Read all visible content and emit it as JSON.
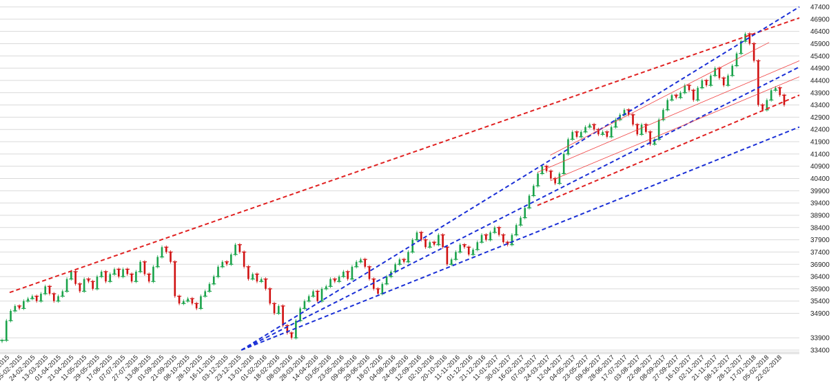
{
  "chart_data": {
    "type": "candlestick",
    "title": "",
    "xlabel": "",
    "ylabel": "",
    "ylim": [
      33400,
      47400
    ],
    "grid": true,
    "y_ticks": [
      33400,
      33900,
      34900,
      35400,
      35900,
      36400,
      36900,
      37400,
      37900,
      38400,
      38900,
      39400,
      39900,
      40400,
      40900,
      41400,
      41900,
      42400,
      42900,
      43400,
      43900,
      44400,
      44900,
      45400,
      45900,
      46400,
      46900,
      47400
    ],
    "x_ticks": [
      "2015",
      "05-02-2015",
      "24-02-2015",
      "13-03-2015",
      "01-04-2015",
      "21-04-2015",
      "11-05-2015",
      "29-05-2015",
      "17-06-2015",
      "07-07-2015",
      "27-07-2015",
      "13-08-2015",
      "01-09-2015",
      "21-09-2015",
      "08-10-2015",
      "28-10-2015",
      "16-11-2015",
      "03-12-2015",
      "23-12-2015",
      "13-01-2016",
      "01-02-2016",
      "18-02-2016",
      "08-03-2016",
      "28-03-2016",
      "14-04-2016",
      "03-05-2016",
      "23-05-2016",
      "09-06-2016",
      "29-06-2016",
      "18-07-2016",
      "04-08-2016",
      "24-08-2016",
      "12-09-2016",
      "02-10-2016",
      "20-10-2016",
      "11-11-2016",
      "01-12-2016",
      "21-12-2016",
      "11-01-2017",
      "30-01-2017",
      "16-02-2017",
      "07-03-2017",
      "24-03-2017",
      "12-04-2017",
      "04-05-2017",
      "23-05-2017",
      "09-06-2017",
      "28-06-2017",
      "17-07-2017",
      "03-08-2017",
      "22-08-2017",
      "08-09-2017",
      "27-09-2017",
      "16-10-2017",
      "02-11-2017",
      "21-11-2017",
      "08-12-2017",
      "28-12-2017",
      "17-01-2018",
      "05-02-2018",
      "22-02-2018"
    ],
    "colors": {
      "up": "#1aa34a",
      "down": "#d01010",
      "trend_red": "#e02020",
      "trend_blue": "#1a2fd6",
      "channel": "#f04040",
      "grid": "#d9d9d9"
    },
    "series": [
      {
        "type": "close",
        "values": [
          33800,
          34600,
          35000,
          35200,
          35100,
          35400,
          35500,
          35600,
          35400,
          35700,
          36000,
          35700,
          35400,
          35600,
          35800,
          36300,
          36600,
          36100,
          35800,
          36300,
          36200,
          35900,
          36400,
          36600,
          36200,
          36500,
          36700,
          36400,
          36700,
          36500,
          36200,
          36600,
          37000,
          36500,
          36200,
          36800,
          37200,
          37600,
          37400,
          37000,
          35600,
          35300,
          35400,
          35500,
          35300,
          35100,
          35600,
          35800,
          36100,
          36400,
          36800,
          37000,
          36900,
          37300,
          37700,
          37400,
          36800,
          36300,
          36500,
          36200,
          36300,
          35900,
          35300,
          34900,
          35200,
          34400,
          34100,
          33900,
          34600,
          35100,
          35400,
          35600,
          35800,
          35400,
          35900,
          36000,
          36300,
          36200,
          36400,
          36600,
          36300,
          36800,
          37000,
          37100,
          36800,
          36300,
          35900,
          35700,
          36100,
          36400,
          36600,
          36900,
          37100,
          37000,
          37400,
          37900,
          38200,
          37900,
          37600,
          37800,
          37700,
          38100,
          37600,
          36900,
          37100,
          37400,
          37700,
          37600,
          37300,
          37500,
          37800,
          38100,
          37900,
          38200,
          38400,
          38100,
          37800,
          37700,
          38100,
          38500,
          38800,
          39200,
          39700,
          40100,
          40600,
          40900,
          40700,
          40400,
          40200,
          40600,
          41400,
          42000,
          42300,
          42100,
          42300,
          42500,
          42600,
          42400,
          42200,
          42300,
          42100,
          42500,
          42800,
          43000,
          43200,
          43000,
          42600,
          42200,
          42600,
          42300,
          41800,
          42000,
          42800,
          43200,
          43600,
          43800,
          43700,
          43900,
          44200,
          44000,
          43600,
          44100,
          44400,
          44200,
          44600,
          44900,
          44500,
          44200,
          44600,
          45000,
          45500,
          46000,
          46300,
          45900,
          45200,
          43400,
          43200,
          43600,
          44000,
          44100,
          43800,
          43400
        ]
      }
    ],
    "trend_lines": [
      {
        "color": "red",
        "style": "dashed",
        "from": [
          "2015",
          35750
        ],
        "to": [
          "end",
          46950
        ]
      },
      {
        "color": "red",
        "style": "dashed",
        "from": [
          "07-03-2017",
          39300
        ],
        "to": [
          "end",
          43800
        ]
      },
      {
        "color": "blue",
        "style": "dashed",
        "from": [
          "23-12-2015",
          33400
        ],
        "to": [
          "end",
          47400
        ]
      },
      {
        "color": "blue",
        "style": "dashed",
        "from": [
          "23-12-2015",
          33400
        ],
        "to": [
          "end",
          44950
        ]
      },
      {
        "color": "blue",
        "style": "dashed",
        "from": [
          "23-12-2015",
          33400
        ],
        "to": [
          "end",
          42500
        ]
      }
    ],
    "channel_lines": [
      {
        "color": "red",
        "style": "thin",
        "from": [
          "24-03-2017",
          41350
        ],
        "to": [
          "05-02-2018",
          45950
        ]
      },
      {
        "color": "red",
        "style": "thin",
        "from": [
          "07-03-2017",
          40650
        ],
        "to": [
          "end",
          45200
        ]
      },
      {
        "color": "red",
        "style": "thin",
        "from": [
          "24-03-2017",
          40300
        ],
        "to": [
          "end",
          44550
        ]
      }
    ]
  }
}
